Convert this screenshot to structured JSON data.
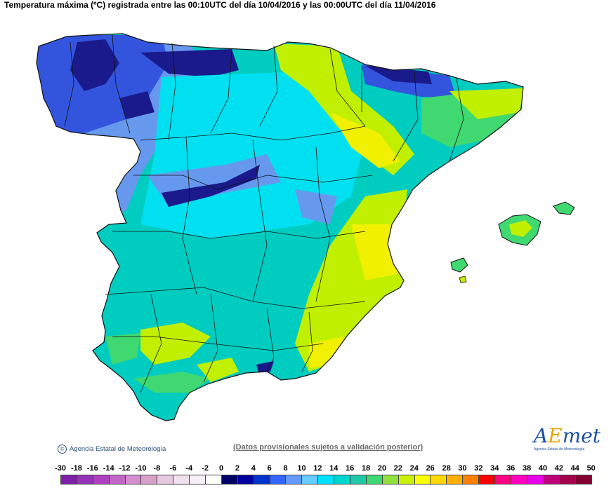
{
  "title": "Temperatura máxima (ºC) registrada entre las 00:10UTC del día 10/04/2016 y las 00:00UTC del día 11/04/2016",
  "footer": {
    "agency": "Agencia Estatal de Meteorología",
    "note": "(Datos provisionales sujetos a validación posterior)"
  },
  "logo": {
    "text_a": "A",
    "text_e": "E",
    "text_rest": "met",
    "subtitle": "Agencia Estatal de Meteorología"
  },
  "legend": {
    "labels": [
      "-30",
      "-18",
      "-16",
      "-14",
      "-12",
      "-10",
      "-8",
      "-6",
      "-4",
      "-2",
      "0",
      "2",
      "4",
      "6",
      "8",
      "10",
      "12",
      "14",
      "16",
      "18",
      "20",
      "22",
      "24",
      "26",
      "28",
      "30",
      "32",
      "34",
      "36",
      "38",
      "40",
      "42",
      "44",
      "50"
    ],
    "colors": [
      "#7f1fa8",
      "#9433b8",
      "#b040c0",
      "#c266c6",
      "#d48ed0",
      "#d8a0c8",
      "#e6c8e0",
      "#f0e0f0",
      "#f7f0f8",
      "#ffffff",
      "#000066",
      "#0000a0",
      "#0033cc",
      "#3366ff",
      "#6699ff",
      "#66ccff",
      "#00e0ff",
      "#00d6d0",
      "#20c8a8",
      "#40d870",
      "#90e040",
      "#c8f000",
      "#ffff00",
      "#ffd800",
      "#ffb000",
      "#ff8000",
      "#ff0000",
      "#ff0080",
      "#ff00c0",
      "#e800e8",
      "#c0007a",
      "#a0004c",
      "#800030"
    ]
  },
  "map_colors": {
    "cold_dark": "#1a1a8c",
    "cold": "#3355dd",
    "cool": "#6699ee",
    "cyan": "#00e0f0",
    "teal": "#00ccc0",
    "teal_light": "#20c8b0",
    "green": "#40d870",
    "yellow_green": "#c0f000",
    "yellow": "#f0f000",
    "border": "#111111"
  }
}
